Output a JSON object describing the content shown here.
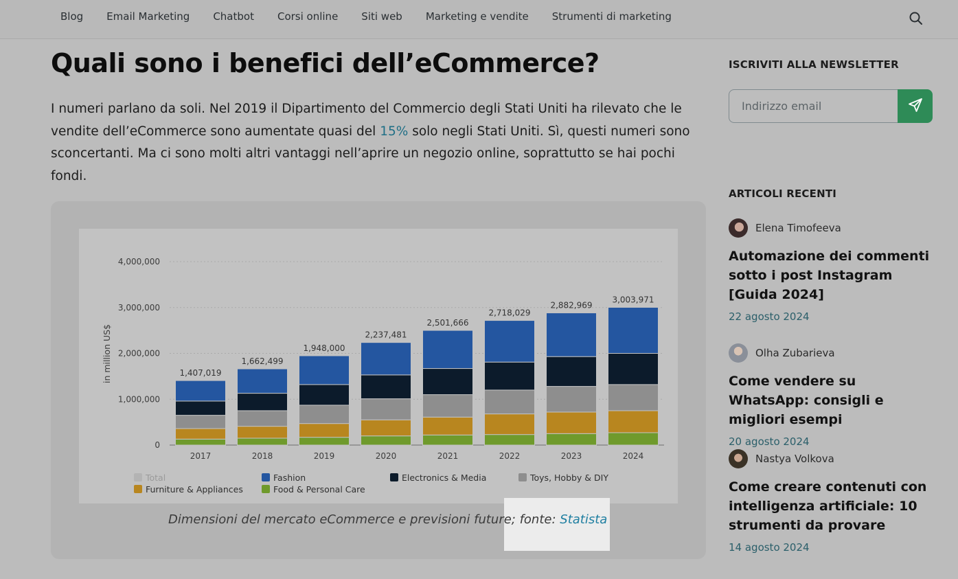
{
  "nav": {
    "items": [
      "Blog",
      "Email Marketing",
      "Chatbot",
      "Corsi online",
      "Siti web",
      "Marketing e vendite",
      "Strumenti di marketing"
    ],
    "search_icon": "search-icon"
  },
  "article": {
    "title": "Quali sono i benefici dell’eCommerce?",
    "intro_before": "I numeri parlano da soli. Nel 2019 il Dipartimento del Commercio degli Stati Uniti ha rilevato che le vendite dell’eCommerce sono aumentate quasi del ",
    "intro_link": "15%",
    "intro_after": " solo negli Stati Uniti. Sì, questi numeri sono sconcertanti. Ma ci sono molti altri vantaggi nell’aprire un negozio online, soprattutto se hai pochi fondi.",
    "caption_text": "Dimensioni del mercato eCommerce e previsioni future; fonte: ",
    "caption_link": "Statista",
    "link_color": "#1f6f86"
  },
  "chart_data": {
    "type": "bar",
    "stacked": true,
    "categories": [
      "2017",
      "2018",
      "2019",
      "2020",
      "2021",
      "2022",
      "2023",
      "2024"
    ],
    "ylabel": "in million US$",
    "ylim": [
      0,
      4000000
    ],
    "yticks": [
      "0",
      "1,000,000",
      "2,000,000",
      "3,000,000",
      "4,000,000"
    ],
    "grid": true,
    "legend_position": "bottom",
    "totals": [
      1407019,
      1662499,
      1948000,
      2237481,
      2501666,
      2718029,
      2882969,
      3003971
    ],
    "total_labels": [
      "1,407,019",
      "1,662,499",
      "1,948,000",
      "2,237,481",
      "2,501,666",
      "2,718,029",
      "2,882,969",
      "3,003,971"
    ],
    "legend": [
      "Total",
      "Fashion",
      "Electronics & Media",
      "Toys, Hobby & DIY",
      "Furniture & Appliances",
      "Food & Personal Care"
    ],
    "series": [
      {
        "name": "Food & Personal Care",
        "color": "#6f9a2c",
        "values": [
          130000,
          150000,
          170000,
          200000,
          220000,
          230000,
          250000,
          270000
        ]
      },
      {
        "name": "Furniture & Appliances",
        "color": "#b8861f",
        "values": [
          230000,
          260000,
          300000,
          350000,
          390000,
          450000,
          470000,
          480000
        ]
      },
      {
        "name": "Toys, Hobby & DIY",
        "color": "#8e8e8e",
        "values": [
          290000,
          340000,
          400000,
          460000,
          490000,
          520000,
          560000,
          570000
        ]
      },
      {
        "name": "Electronics & Media",
        "color": "#0c1b2b",
        "values": [
          310000,
          380000,
          450000,
          520000,
          570000,
          610000,
          650000,
          680000
        ]
      },
      {
        "name": "Fashion",
        "color": "#2456a0",
        "values": [
          447019,
          532499,
          628000,
          707481,
          831666,
          908029,
          952969,
          1003971
        ]
      }
    ]
  },
  "sidebar": {
    "newsletter_heading": "ISCRIVITI ALLA NEWSLETTER",
    "email_placeholder": "Indirizzo email",
    "send_color": "#2e8b57",
    "recent_heading": "ARTICOLI RECENTI",
    "posts": [
      {
        "author": "Elena Timofeeva",
        "title": "Automazione dei commenti sotto i post Instagram [Guida 2024]",
        "date": "22 agosto 2024"
      },
      {
        "author": "Olha Zubarieva",
        "title": "Come vendere su WhatsApp: consigli e migliori esempi",
        "date": "20 agosto 2024"
      },
      {
        "author": "Nastya Volkova",
        "title": "Come creare contenuti con intelligenza artificiale: 10 strumenti da provare",
        "date": "14 agosto 2024"
      }
    ]
  }
}
